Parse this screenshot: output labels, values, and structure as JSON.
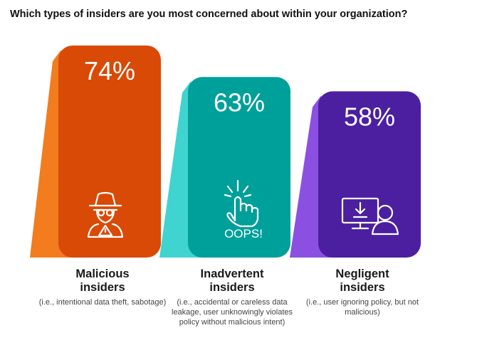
{
  "chart_data": {
    "type": "bar",
    "title": "Which types of insiders are you most concerned about within your organization?",
    "categories": [
      "Malicious insiders",
      "Inadvertent insiders",
      "Negligent insiders"
    ],
    "descriptions": [
      "(i.e., intentional data theft, sabotage)",
      "(i.e., accidental or careless data leakage, user unknowingly violates policy without malicious intent)",
      "(i.e., user ignoring policy, but not malicious)"
    ],
    "values": [
      74,
      63,
      58
    ],
    "value_labels": [
      "74%",
      "63%",
      "58%"
    ],
    "colors": [
      "#d94a06",
      "#00a09a",
      "#4b1fa0"
    ],
    "shadow_colors": [
      "#f27c1e",
      "#3fd4d0",
      "#8b4fe2"
    ],
    "icon_label": "OOPS!"
  }
}
